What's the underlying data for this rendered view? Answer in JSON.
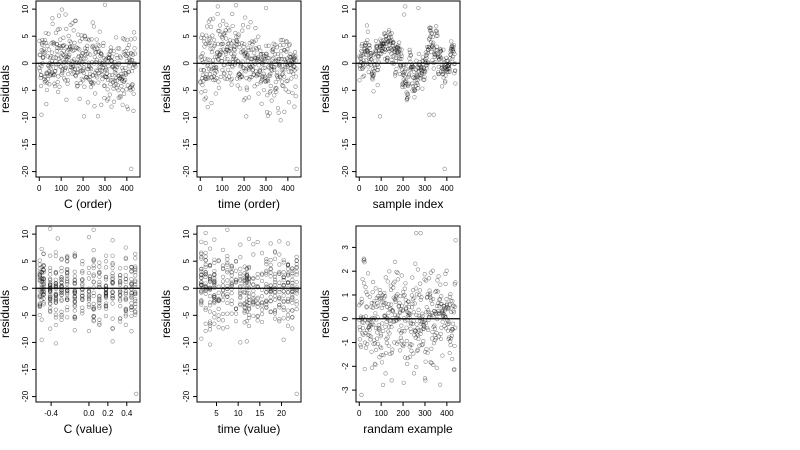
{
  "chart_data": [
    {
      "type": "scatter",
      "title": "",
      "xlabel": "C (order)",
      "ylabel": "residuals",
      "xlim": [
        -15,
        460
      ],
      "ylim": [
        -21,
        11.5
      ],
      "xticks": [
        0,
        100,
        200,
        300,
        400
      ],
      "yticks": [
        -20,
        -15,
        -10,
        -5,
        0,
        5,
        10
      ],
      "xtick_labels": [
        "0",
        "100",
        "200",
        "300",
        "400"
      ],
      "ytick_labels": [
        "-20",
        "-15",
        "-10",
        "-5",
        "0",
        "5",
        "10"
      ],
      "hline": 0,
      "gen": "order",
      "seed": 11,
      "n": 440,
      "sd": 3.2,
      "points": [
        [
          10,
          -9.5
        ],
        [
          205,
          -9.8
        ],
        [
          420,
          -19.5
        ],
        [
          300,
          10.8
        ],
        [
          120,
          9.0
        ],
        [
          330,
          -8.0
        ]
      ]
    },
    {
      "type": "scatter",
      "title": "",
      "xlabel": "time (order)",
      "ylabel": "residuals",
      "xlim": [
        -15,
        460
      ],
      "ylim": [
        -21,
        11.5
      ],
      "xticks": [
        0,
        100,
        200,
        300,
        400
      ],
      "yticks": [
        -20,
        -15,
        -10,
        -5,
        0,
        5,
        10
      ],
      "xtick_labels": [
        "0",
        "100",
        "200",
        "300",
        "400"
      ],
      "ytick_labels": [
        "-20",
        "-15",
        "-10",
        "-5",
        "0",
        "5",
        "10"
      ],
      "hline": 0,
      "gen": "order",
      "seed": 23,
      "n": 440,
      "sd": 3.2,
      "points": [
        [
          210,
          -9.8
        ],
        [
          440,
          -19.5
        ],
        [
          80,
          10.5
        ],
        [
          300,
          10.2
        ],
        [
          430,
          -8.0
        ]
      ]
    },
    {
      "type": "scatter",
      "title": "",
      "xlabel": "sample index",
      "ylabel": "residuals",
      "xlim": [
        -15,
        460
      ],
      "ylim": [
        -21,
        11.5
      ],
      "xticks": [
        0,
        100,
        200,
        300,
        400
      ],
      "yticks": [
        -20,
        -15,
        -10,
        -5,
        0,
        5,
        10
      ],
      "xtick_labels": [
        "0",
        "100",
        "200",
        "300",
        "400"
      ],
      "ytick_labels": [
        "-20",
        "-15",
        "-10",
        "-5",
        "0",
        "5",
        "10"
      ],
      "hline": 0,
      "gen": "sorted",
      "seed": 37,
      "n": 440,
      "sd": 2.0,
      "points": [
        [
          210,
          10.5
        ],
        [
          205,
          9.0
        ],
        [
          270,
          10.2
        ],
        [
          95,
          -9.8
        ],
        [
          320,
          -9.5
        ],
        [
          340,
          -9.5
        ],
        [
          390,
          -19.5
        ]
      ]
    },
    {
      "type": "scatter",
      "title": "",
      "xlabel": "C (value)",
      "ylabel": "residuals",
      "xlim": [
        -0.56,
        0.54
      ],
      "ylim": [
        -21,
        11.5
      ],
      "xticks": [
        -0.4,
        0.0,
        0.2,
        0.4
      ],
      "yticks": [
        -20,
        -15,
        -10,
        -5,
        0,
        5,
        10
      ],
      "xtick_labels": [
        "-0.4",
        "0.0",
        "0.2",
        "0.4"
      ],
      "ytick_labels": [
        "-20",
        "-15",
        "-10",
        "-5",
        "0",
        "5",
        "10"
      ],
      "hline": 0,
      "gen": "columns",
      "seed": 51,
      "n": 440,
      "sd": 3.2,
      "columns": [
        -0.52,
        -0.5,
        -0.48,
        -0.41,
        -0.35,
        -0.29,
        -0.23,
        -0.15,
        -0.07,
        0.0,
        0.05,
        0.11,
        0.18,
        0.25,
        0.33,
        0.39,
        0.45,
        0.49
      ],
      "points": [
        [
          -0.5,
          -9.5
        ],
        [
          0.5,
          -19.5
        ],
        [
          0.05,
          10.8
        ],
        [
          -0.33,
          9.2
        ],
        [
          0.25,
          -9.8
        ]
      ]
    },
    {
      "type": "scatter",
      "title": "",
      "xlabel": "time (value)",
      "ylabel": "residuals",
      "xlim": [
        0.5,
        24.5
      ],
      "ylim": [
        -21,
        11.5
      ],
      "xticks": [
        5,
        10,
        15,
        20
      ],
      "yticks": [
        -20,
        -15,
        -10,
        -5,
        0,
        5,
        10
      ],
      "xtick_labels": [
        "5",
        "10",
        "15",
        "20"
      ],
      "ytick_labels": [
        "-20",
        "-15",
        "-10",
        "-5",
        "0",
        "5",
        "10"
      ],
      "hline": 0,
      "gen": "columns",
      "seed": 67,
      "n": 440,
      "sd": 3.2,
      "columns": [
        1.5,
        2.5,
        3.5,
        4.5,
        5.5,
        6.5,
        7.5,
        8.5,
        9.5,
        10.5,
        11.5,
        12,
        12.5,
        13.5,
        14.5,
        15.5,
        16.5,
        17.5,
        18.5,
        19.5,
        20.5,
        21.5,
        22.5,
        23.5
      ],
      "points": [
        [
          23.5,
          -19.5
        ],
        [
          2.5,
          10.2
        ],
        [
          7.5,
          10.8
        ],
        [
          12,
          -9.8
        ],
        [
          20.5,
          -9.5
        ]
      ]
    },
    {
      "type": "scatter",
      "title": "",
      "xlabel": "randam example",
      "ylabel": "residuals",
      "xlim": [
        -15,
        460
      ],
      "ylim": [
        -3.5,
        3.9
      ],
      "xticks": [
        0,
        100,
        200,
        300,
        400
      ],
      "yticks": [
        -3,
        -2,
        -1,
        0,
        1,
        2,
        3
      ],
      "xtick_labels": [
        "0",
        "100",
        "200",
        "300",
        "400"
      ],
      "ytick_labels": [
        "-3",
        "-2",
        "-1",
        "0",
        "1",
        "2",
        "3"
      ],
      "hline": 0,
      "gen": "random",
      "seed": 83,
      "n": 440,
      "sd": 1.0,
      "points": [
        [
          260,
          3.6
        ],
        [
          280,
          3.6
        ],
        [
          440,
          3.3
        ],
        [
          10,
          -3.2
        ],
        [
          300,
          -2.5
        ],
        [
          120,
          -2.3
        ]
      ]
    }
  ]
}
